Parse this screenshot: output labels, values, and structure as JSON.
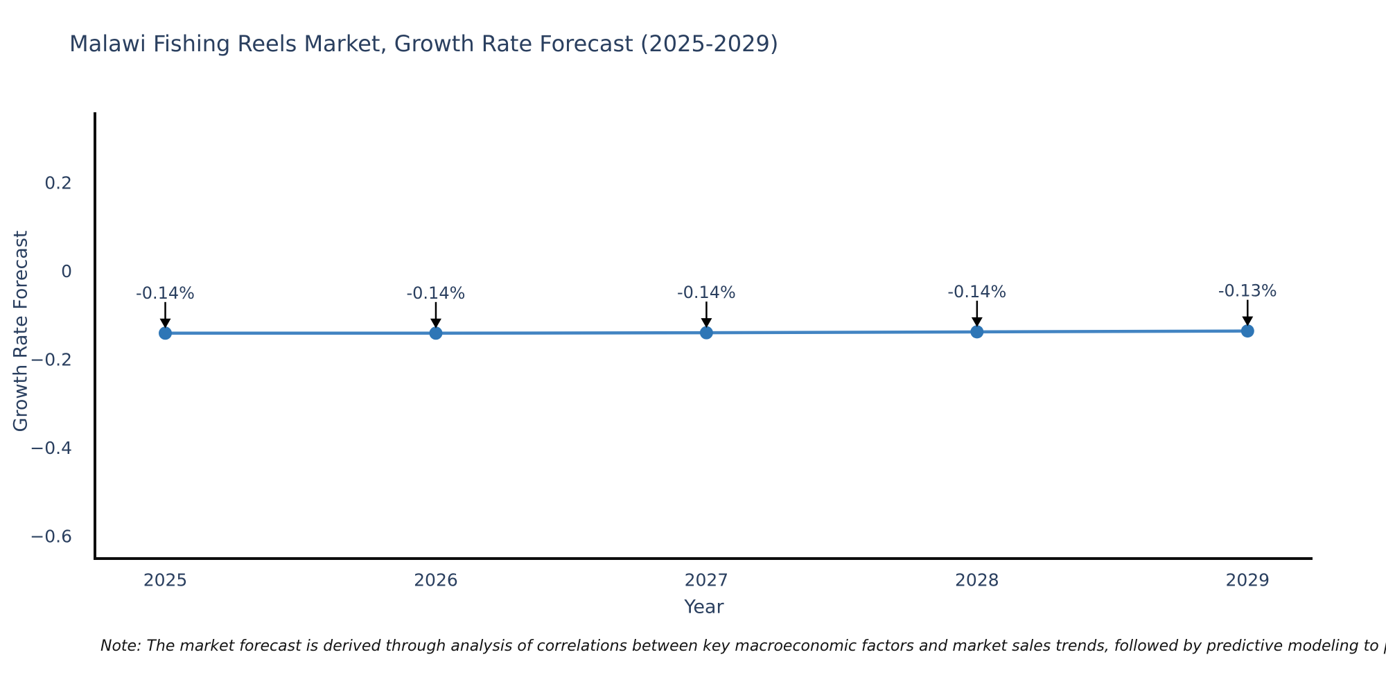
{
  "title": "Malawi Fishing Reels Market, Growth Rate Forecast (2025-2029)",
  "note": "Note: The market forecast is derived through analysis of correlations between key macroeconomic factors and market sales trends, followed by predictive modeling to project future sa",
  "colors": {
    "line": "#4284c2",
    "marker": "#2e76b6",
    "text": "#2a3f5f",
    "axis": "#0d0d0d",
    "annotation_arrow": "#000000",
    "note_text": "#141414",
    "background": "#ffffff"
  },
  "chart_data": {
    "type": "line",
    "title": "Malawi Fishing Reels Market, Growth Rate Forecast (2025-2029)",
    "xlabel": "Year",
    "ylabel": "Growth Rate Forecast",
    "x": [
      2025,
      2026,
      2027,
      2028,
      2029
    ],
    "series": [
      {
        "name": "Growth Rate Forecast",
        "values": [
          -0.14,
          -0.14,
          -0.139,
          -0.137,
          -0.135
        ]
      }
    ],
    "point_labels": [
      "-0.14%",
      "-0.14%",
      "-0.14%",
      "-0.14%",
      "-0.13%"
    ],
    "xlim": [
      2024.74,
      2029.24
    ],
    "ylim": [
      -0.65,
      0.36
    ],
    "xticks": [
      2025,
      2026,
      2027,
      2028,
      2029
    ],
    "xtick_labels": [
      "2025",
      "2026",
      "2027",
      "2028",
      "2029"
    ],
    "yticks": [
      0.2,
      0,
      -0.2,
      -0.4,
      -0.6
    ],
    "ytick_labels": [
      "0.2",
      "0",
      "−0.2",
      "−0.4",
      "−0.6"
    ],
    "grid": false,
    "legend": "none",
    "marker": "circle",
    "annotations_arrow": true
  }
}
